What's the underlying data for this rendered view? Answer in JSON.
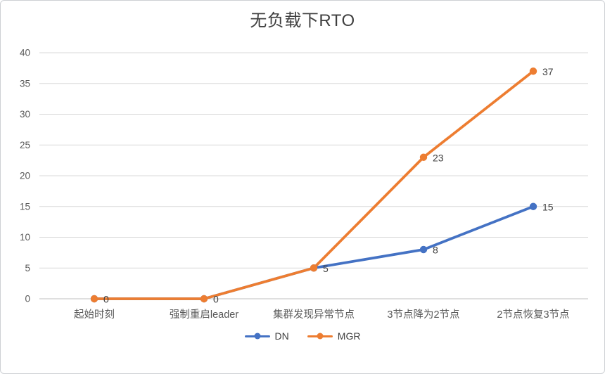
{
  "chart": {
    "title": "无负载下RTO"
  },
  "chart_data": {
    "type": "line",
    "title": "无负载下RTO",
    "categories": [
      "起始时刻",
      "强制重启leader",
      "集群发现异常节点",
      "3节点降为2节点",
      "2节点恢复3节点"
    ],
    "series": [
      {
        "name": "DN",
        "color": "#4472C4",
        "values": [
          0,
          0,
          5,
          8,
          15
        ],
        "labels": [
          "",
          "",
          "",
          "8",
          "15"
        ]
      },
      {
        "name": "MGR",
        "color": "#ED7D31",
        "values": [
          0,
          0,
          5,
          23,
          37
        ],
        "labels": [
          "0",
          "0",
          "5",
          "23",
          "37"
        ]
      }
    ],
    "xlabel": "",
    "ylabel": "",
    "ylim": [
      0,
      40
    ],
    "yticks": [
      0,
      5,
      10,
      15,
      20,
      25,
      30,
      35,
      40
    ],
    "grid": true,
    "legend_position": "bottom",
    "colors": {
      "grid": "#d9d9d9",
      "axis": "#bfbfbf",
      "tick_text": "#595959",
      "label_text": "#404040"
    }
  }
}
